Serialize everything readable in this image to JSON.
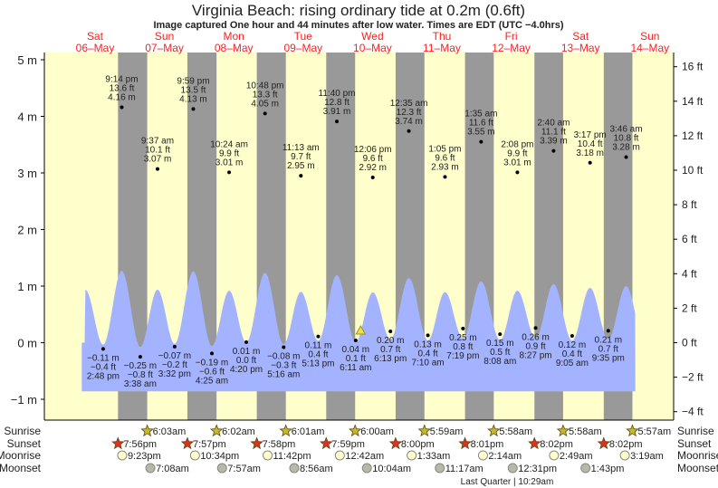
{
  "chart_data": {
    "type": "area",
    "title": "Virginia Beach: rising  ordinary tide at 0.2m (0.6ft)",
    "subtitle": "Image captured One hour and 44 minutes after low water. Times are EDT (UTC −4.0hrs)",
    "days": [
      {
        "name": "Sat",
        "date": "06–May"
      },
      {
        "name": "Sun",
        "date": "07–May"
      },
      {
        "name": "Mon",
        "date": "08–May"
      },
      {
        "name": "Tue",
        "date": "09–May"
      },
      {
        "name": "Wed",
        "date": "10–May"
      },
      {
        "name": "Thu",
        "date": "11–May"
      },
      {
        "name": "Fri",
        "date": "12–May"
      },
      {
        "name": "Sat",
        "date": "13–May"
      },
      {
        "name": "Sun",
        "date": "14–May"
      }
    ],
    "y_left": {
      "unit": "m",
      "ticks": [
        5,
        4,
        3,
        2,
        1,
        0,
        -1
      ],
      "labels": [
        "5 m",
        "4 m",
        "3 m",
        "2 m",
        "1 m",
        "0 m",
        "−1 m"
      ]
    },
    "y_right": {
      "unit": "ft",
      "ticks": [
        16,
        14,
        12,
        10,
        8,
        6,
        4,
        2,
        0,
        -2,
        -4
      ],
      "labels": [
        "16 ft",
        "14 ft",
        "12 ft",
        "10 ft",
        "8 ft",
        "6 ft",
        "4 ft",
        "2 ft",
        "0 ft",
        "−2 ft",
        "−4 ft"
      ]
    },
    "current": {
      "day": 4,
      "time": "7:55 am",
      "m": 0.2,
      "ft": 0.6
    },
    "extremes": [
      {
        "day": 0,
        "time": "2:48 pm",
        "type": "low",
        "m": "−0.11 m",
        "ft": "−0.4 ft",
        "v": -0.11
      },
      {
        "day": 0,
        "time": "9:14 pm",
        "type": "high",
        "m": "4.16 m",
        "ft": "13.6 ft",
        "v": 4.16
      },
      {
        "day": 1,
        "time": "3:38 am",
        "type": "low",
        "m": "−0.25 m",
        "ft": "−0.8 ft",
        "v": -0.25
      },
      {
        "day": 1,
        "time": "9:37 am",
        "type": "high",
        "m": "3.07 m",
        "ft": "10.1 ft",
        "v": 3.07
      },
      {
        "day": 1,
        "time": "3:32 pm",
        "type": "low",
        "m": "−0.07 m",
        "ft": "−0.2 ft",
        "v": -0.07
      },
      {
        "day": 1,
        "time": "9:59 pm",
        "type": "high",
        "m": "4.13 m",
        "ft": "13.5 ft",
        "v": 4.13
      },
      {
        "day": 2,
        "time": "4:25 am",
        "type": "low",
        "m": "−0.19 m",
        "ft": "−0.6 ft",
        "v": -0.19
      },
      {
        "day": 2,
        "time": "10:24 am",
        "type": "high",
        "m": "3.01 m",
        "ft": "9.9 ft",
        "v": 3.01
      },
      {
        "day": 2,
        "time": "4:20 pm",
        "type": "low",
        "m": "0.01 m",
        "ft": "0.0 ft",
        "v": 0.01
      },
      {
        "day": 2,
        "time": "10:48 pm",
        "type": "high",
        "m": "4.05 m",
        "ft": "13.3 ft",
        "v": 4.05
      },
      {
        "day": 3,
        "time": "5:16 am",
        "type": "low",
        "m": "−0.08 m",
        "ft": "−0.3 ft",
        "v": -0.08
      },
      {
        "day": 3,
        "time": "11:13 am",
        "type": "high",
        "m": "2.95 m",
        "ft": "9.7 ft",
        "v": 2.95
      },
      {
        "day": 3,
        "time": "5:13 pm",
        "type": "low",
        "m": "0.11 m",
        "ft": "0.4 ft",
        "v": 0.11
      },
      {
        "day": 3,
        "time": "11:40 pm",
        "type": "high",
        "m": "3.91 m",
        "ft": "12.8 ft",
        "v": 3.91
      },
      {
        "day": 4,
        "time": "6:11 am",
        "type": "low",
        "m": "0.04 m",
        "ft": "0.1 ft",
        "v": 0.04
      },
      {
        "day": 4,
        "time": "12:06 pm",
        "type": "high",
        "m": "2.92 m",
        "ft": "9.6 ft",
        "v": 2.92
      },
      {
        "day": 4,
        "time": "6:13 pm",
        "type": "low",
        "m": "0.20 m",
        "ft": "0.7 ft",
        "v": 0.2
      },
      {
        "day": 5,
        "time": "12:35 am",
        "type": "high",
        "m": "3.74 m",
        "ft": "12.3 ft",
        "v": 3.74
      },
      {
        "day": 5,
        "time": "7:10 am",
        "type": "low",
        "m": "0.13 m",
        "ft": "0.4 ft",
        "v": 0.13
      },
      {
        "day": 5,
        "time": "1:05 pm",
        "type": "high",
        "m": "2.93 m",
        "ft": "9.6 ft",
        "v": 2.93
      },
      {
        "day": 5,
        "time": "7:19 pm",
        "type": "low",
        "m": "0.25 m",
        "ft": "0.8 ft",
        "v": 0.25
      },
      {
        "day": 6,
        "time": "1:35 am",
        "type": "high",
        "m": "3.55 m",
        "ft": "11.6 ft",
        "v": 3.55
      },
      {
        "day": 6,
        "time": "8:08 am",
        "type": "low",
        "m": "0.15 m",
        "ft": "0.5 ft",
        "v": 0.15
      },
      {
        "day": 6,
        "time": "2:08 pm",
        "type": "high",
        "m": "3.01 m",
        "ft": "9.9 ft",
        "v": 3.01
      },
      {
        "day": 6,
        "time": "8:27 pm",
        "type": "low",
        "m": "0.26 m",
        "ft": "0.9 ft",
        "v": 0.26
      },
      {
        "day": 7,
        "time": "2:40 am",
        "type": "high",
        "m": "3.39 m",
        "ft": "11.1 ft",
        "v": 3.39
      },
      {
        "day": 7,
        "time": "9:05 am",
        "type": "low",
        "m": "0.12 m",
        "ft": "0.4 ft",
        "v": 0.12
      },
      {
        "day": 7,
        "time": "3:17 pm",
        "type": "high",
        "m": "3.18 m",
        "ft": "10.4 ft",
        "v": 3.18
      },
      {
        "day": 7,
        "time": "9:35 pm",
        "type": "low",
        "m": "0.21 m",
        "ft": "0.7 ft",
        "v": 0.21
      },
      {
        "day": 8,
        "time": "3:46 am",
        "type": "high",
        "m": "3.28 m",
        "ft": "10.8 ft",
        "v": 3.28
      }
    ],
    "rows": {
      "sunrise": {
        "label": "Sunrise",
        "items": [
          {
            "day": 1,
            "time": "6:03am"
          },
          {
            "day": 2,
            "time": "6:02am"
          },
          {
            "day": 3,
            "time": "6:01am"
          },
          {
            "day": 4,
            "time": "6:00am"
          },
          {
            "day": 5,
            "time": "5:59am"
          },
          {
            "day": 6,
            "time": "5:58am"
          },
          {
            "day": 7,
            "time": "5:58am"
          },
          {
            "day": 8,
            "time": "5:57am"
          }
        ]
      },
      "sunset": {
        "label": "Sunset",
        "items": [
          {
            "day": 0,
            "time": "7:56pm"
          },
          {
            "day": 1,
            "time": "7:57pm"
          },
          {
            "day": 2,
            "time": "7:58pm"
          },
          {
            "day": 3,
            "time": "7:59pm"
          },
          {
            "day": 4,
            "time": "8:00pm"
          },
          {
            "day": 5,
            "time": "8:01pm"
          },
          {
            "day": 6,
            "time": "8:02pm"
          },
          {
            "day": 7,
            "time": "8:02pm"
          }
        ]
      },
      "moonrise": {
        "label": "Moonrise",
        "items": [
          {
            "day": 0,
            "time": "9:23pm"
          },
          {
            "day": 1,
            "time": "10:34pm"
          },
          {
            "day": 2,
            "time": "11:42pm"
          },
          {
            "day": 4,
            "time": "12:42am"
          },
          {
            "day": 5,
            "time": "1:33am"
          },
          {
            "day": 6,
            "time": "2:14am"
          },
          {
            "day": 7,
            "time": "2:49am"
          },
          {
            "day": 8,
            "time": "3:19am"
          }
        ]
      },
      "moonset": {
        "label": "Moonset",
        "items": [
          {
            "day": 1,
            "time": "7:08am"
          },
          {
            "day": 2,
            "time": "7:57am"
          },
          {
            "day": 3,
            "time": "8:56am"
          },
          {
            "day": 4,
            "time": "10:04am"
          },
          {
            "day": 5,
            "time": "11:17am"
          },
          {
            "day": 6,
            "time": "12:31pm"
          },
          {
            "day": 7,
            "time": "1:43pm"
          }
        ]
      }
    },
    "moon_phase": "Last Quarter | 10:29am",
    "colors": {
      "day": "#ffffcc",
      "night": "#999999",
      "water": "#a3b3ff",
      "day_label": "#ff2020",
      "sunrise_icon": "#c8b830",
      "sunset_icon": "#e03020",
      "moonrise_icon": "#ffffcc",
      "moonset_icon": "#b8b8a8",
      "current_marker": "#f0e040"
    }
  }
}
